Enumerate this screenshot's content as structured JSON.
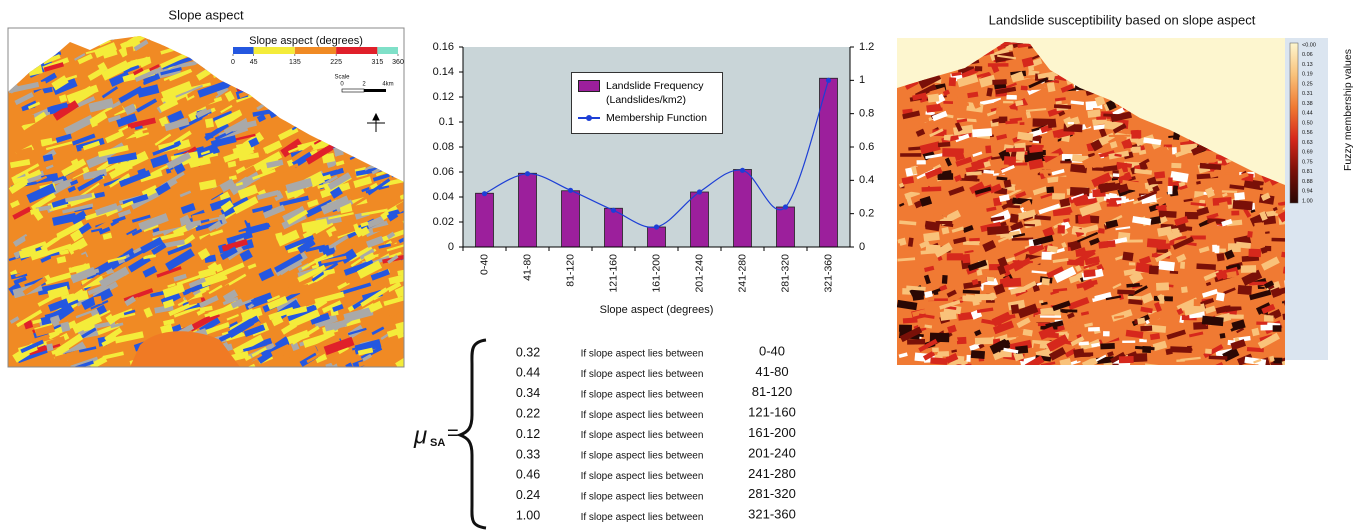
{
  "left_map": {
    "title": "Slope aspect",
    "legend_title": "Slope aspect (degrees)",
    "legend_range": [
      0,
      360
    ],
    "legend_ticks": [
      0,
      45,
      135,
      225,
      315,
      360
    ],
    "legend_colors": [
      "#2457e0",
      "#f4ec3a",
      "#f08a24",
      "#e0202a",
      "#7fe0c8"
    ],
    "background_colors": [
      "#a9a9a9"
    ],
    "scale_title": "Scale",
    "scale_labels": [
      "0",
      "2",
      "4km"
    ]
  },
  "chart_data": {
    "type": "bar",
    "categories": [
      "0-40",
      "41-80",
      "81-120",
      "121-160",
      "161-200",
      "201-240",
      "241-280",
      "281-320",
      "321-360"
    ],
    "series": [
      {
        "name": "Landslide Frequency (Landslides/km2)",
        "type": "bar",
        "color": "#9c1f9c",
        "values": [
          0.043,
          0.059,
          0.045,
          0.031,
          0.016,
          0.044,
          0.062,
          0.032,
          0.135
        ]
      },
      {
        "name": "Membership Function",
        "type": "line",
        "axis": "y2",
        "color": "#1d3fd6",
        "values": [
          0.32,
          0.44,
          0.34,
          0.22,
          0.12,
          0.33,
          0.46,
          0.24,
          1.0
        ]
      }
    ],
    "x_label": "Slope aspect (degrees)",
    "ylim": [
      0,
      0.16
    ],
    "yticks": [
      0,
      0.02,
      0.04,
      0.06,
      0.08,
      0.1,
      0.12,
      0.14,
      0.16
    ],
    "y2lim": [
      0,
      1.2
    ],
    "y2ticks": [
      0,
      0.2,
      0.4,
      0.6,
      0.8,
      1,
      1.2
    ],
    "plot_background": "#c9d5d8"
  },
  "right_map": {
    "title": "Landslide susceptibility based on slope aspect",
    "colorbar_label": "Fuzzy membership values",
    "colorbar_labels": [
      "<0.00",
      "0.06",
      "0.13",
      "0.19",
      "0.25",
      "0.31",
      "0.38",
      "0.44",
      "0.50",
      "0.56",
      "0.63",
      "0.69",
      "0.75",
      "0.81",
      "0.88",
      "0.94",
      "1.00"
    ],
    "colorbar_colors": [
      "#fdf6cf",
      "#f9c27a",
      "#f07a33",
      "#d6281c",
      "#7a1008",
      "#2a0804"
    ]
  },
  "equation": {
    "symbol": "μ",
    "subscript": "SA",
    "operator": "=",
    "rows": [
      {
        "value": "0.32",
        "condition": "If slope aspect lies between",
        "range": "0-40"
      },
      {
        "value": "0.44",
        "condition": "If slope aspect lies between",
        "range": "41-80"
      },
      {
        "value": "0.34",
        "condition": "If slope aspect lies between",
        "range": "81-120"
      },
      {
        "value": "0.22",
        "condition": "If slope aspect lies between",
        "range": "121-160"
      },
      {
        "value": "0.12",
        "condition": "If slope aspect lies between",
        "range": "161-200"
      },
      {
        "value": "0.33",
        "condition": "If slope aspect lies between",
        "range": "201-240"
      },
      {
        "value": "0.46",
        "condition": "If slope aspect lies between",
        "range": "241-280"
      },
      {
        "value": "0.24",
        "condition": "If slope aspect lies between",
        "range": "281-320"
      },
      {
        "value": "1.00",
        "condition": "If slope aspect lies between",
        "range": "321-360"
      }
    ]
  }
}
